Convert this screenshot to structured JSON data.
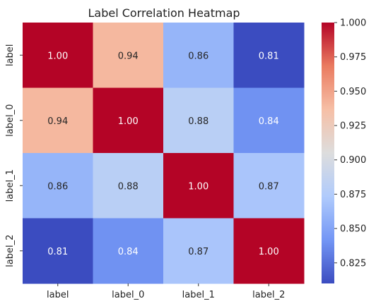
{
  "chart_data": {
    "type": "heatmap",
    "title": "Label Correlation Heatmap",
    "xlabel": "",
    "ylabel": "",
    "x_labels": [
      "label",
      "label_0",
      "label_1",
      "label_2"
    ],
    "y_labels": [
      "label",
      "label_0",
      "label_1",
      "label_2"
    ],
    "values": [
      [
        1.0,
        0.94,
        0.86,
        0.81
      ],
      [
        0.94,
        1.0,
        0.88,
        0.84
      ],
      [
        0.86,
        0.88,
        1.0,
        0.87
      ],
      [
        0.81,
        0.84,
        0.87,
        1.0
      ]
    ],
    "annotation_format": "0.00",
    "colormap": "coolwarm",
    "colormap_stops": [
      "#3b4cc0",
      "#7396f5",
      "#b0cbfc",
      "#dddddd",
      "#f6bfa6",
      "#ea7b60",
      "#b40426"
    ],
    "vmin": 0.81,
    "vmax": 1.0,
    "colorbar": {
      "position": "right",
      "ticks": [
        "0.825",
        "0.850",
        "0.875",
        "0.900",
        "0.925",
        "0.950",
        "0.975",
        "1.000"
      ]
    },
    "grid": false
  }
}
